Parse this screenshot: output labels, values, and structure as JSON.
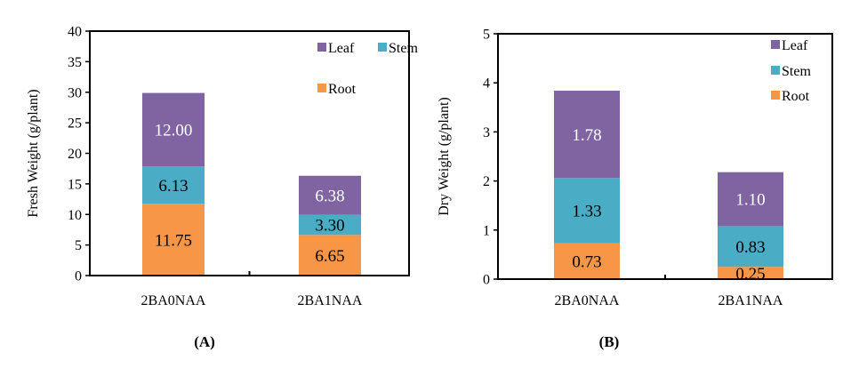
{
  "colors": {
    "Leaf": "#8064a2",
    "Stem": "#4bacc6",
    "Root": "#f79646",
    "axis": "#000000"
  },
  "chart_data": [
    {
      "type": "bar",
      "stacked": true,
      "panel_label": "(A)",
      "title": "",
      "xlabel": "",
      "ylabel": "Fresh Weight (g/plant)",
      "ylim": [
        0,
        40
      ],
      "yticks": [
        0,
        5,
        10,
        15,
        20,
        25,
        30,
        35,
        40
      ],
      "categories": [
        "2BA0NAA",
        "2BA1NAA"
      ],
      "series": [
        {
          "name": "Root",
          "values": [
            11.75,
            6.65
          ],
          "labels": [
            "11.75",
            "6.65"
          ],
          "label_color": "#000000"
        },
        {
          "name": "Stem",
          "values": [
            6.13,
            3.3
          ],
          "labels": [
            "6.13",
            "3.30"
          ],
          "label_color": "#000000"
        },
        {
          "name": "Leaf",
          "values": [
            12.0,
            6.38
          ],
          "labels": [
            "12.00",
            "6.38"
          ],
          "label_color": "#ffffff"
        }
      ],
      "legend": {
        "placement": "top-right",
        "entries": [
          "Leaf",
          "Stem",
          "Root"
        ]
      },
      "grid": false
    },
    {
      "type": "bar",
      "stacked": true,
      "panel_label": "(B)",
      "title": "",
      "xlabel": "",
      "ylabel": "Dry Weight (g/plant)",
      "ylim": [
        0,
        5
      ],
      "yticks": [
        0,
        1,
        2,
        3,
        4,
        5
      ],
      "categories": [
        "2BA0NAA",
        "2BA1NAA"
      ],
      "series": [
        {
          "name": "Root",
          "values": [
            0.73,
            0.25
          ],
          "labels": [
            "0.73",
            "0.25"
          ],
          "label_color": "#000000"
        },
        {
          "name": "Stem",
          "values": [
            1.33,
            0.83
          ],
          "labels": [
            "1.33",
            "0.83"
          ],
          "label_color": "#000000"
        },
        {
          "name": "Leaf",
          "values": [
            1.78,
            1.1
          ],
          "labels": [
            "1.78",
            "1.10"
          ],
          "label_color": "#ffffff"
        }
      ],
      "legend": {
        "placement": "top-right",
        "entries": [
          "Leaf",
          "Stem",
          "Root"
        ]
      },
      "grid": false
    }
  ]
}
